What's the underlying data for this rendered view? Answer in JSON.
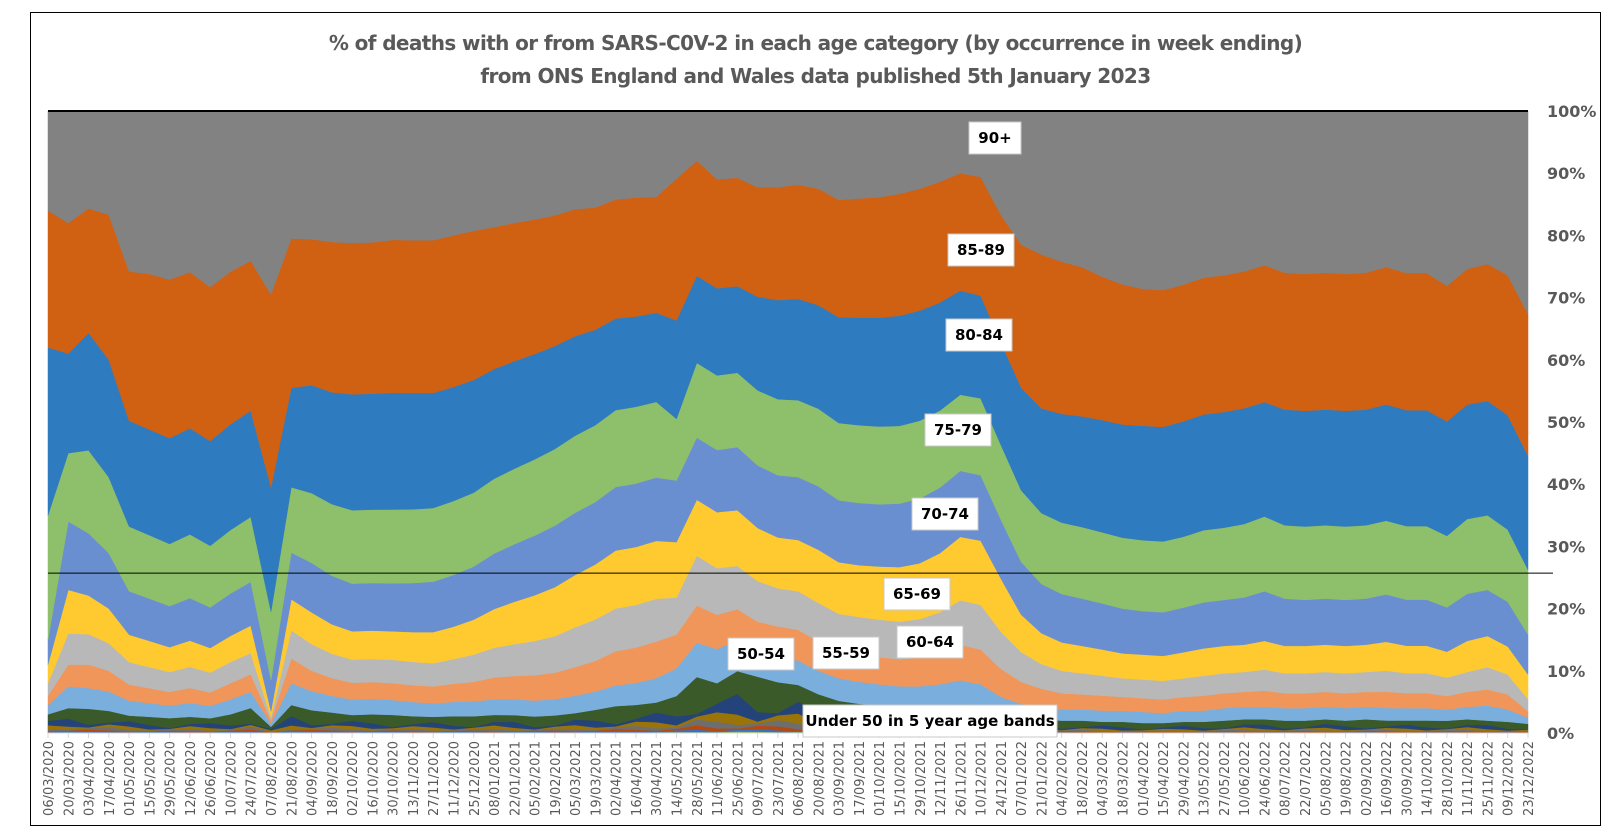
{
  "chart_data": {
    "type": "area",
    "stacked": "percent",
    "title": "% of deaths with or from SARS-C0V-2 in each age category (by occurrence in week ending)",
    "subtitle": "from ONS England and Wales data published 5th January 2023",
    "xlabel": "",
    "ylabel": "",
    "ylim": [
      0,
      100
    ],
    "y_ticks": [
      "0%",
      "10%",
      "20%",
      "30%",
      "40%",
      "50%",
      "60%",
      "70%",
      "80%",
      "90%",
      "100%"
    ],
    "y_axis_position": "right",
    "grid": false,
    "legend": "none (inline data labels)",
    "reference_line_pct": 25.7,
    "x": [
      "06/03/2020",
      "20/03/2020",
      "03/04/2020",
      "17/04/2020",
      "01/05/2020",
      "15/05/2020",
      "29/05/2020",
      "12/06/2020",
      "26/06/2020",
      "10/07/2020",
      "24/07/2020",
      "07/08/2020",
      "21/08/2020",
      "04/09/2020",
      "18/09/2020",
      "02/10/2020",
      "16/10/2020",
      "30/10/2020",
      "13/11/2020",
      "27/11/2020",
      "11/12/2020",
      "25/12/2020",
      "08/01/2021",
      "22/01/2021",
      "05/02/2021",
      "19/02/2021",
      "05/03/2021",
      "19/03/2021",
      "02/04/2021",
      "16/04/2021",
      "30/04/2021",
      "14/05/2021",
      "28/05/2021",
      "11/06/2021",
      "25/06/2021",
      "09/07/2021",
      "23/07/2021",
      "06/08/2021",
      "20/08/2021",
      "03/09/2021",
      "17/09/2021",
      "01/10/2021",
      "15/10/2021",
      "29/10/2021",
      "12/11/2021",
      "26/11/2021",
      "10/12/2021",
      "24/12/2021",
      "07/01/2022",
      "21/01/2022",
      "04/02/2022",
      "18/02/2022",
      "04/03/2022",
      "18/03/2022",
      "01/04/2022",
      "15/04/2022",
      "29/04/2022",
      "13/05/2022",
      "27/05/2022",
      "10/06/2022",
      "24/06/2022",
      "08/07/2022",
      "22/07/2022",
      "05/08/2022",
      "19/08/2022",
      "02/09/2022",
      "16/09/2022",
      "30/09/2022",
      "14/10/2022",
      "28/10/2022",
      "11/11/2022",
      "25/11/2022",
      "09/12/2022",
      "23/12/2022"
    ],
    "series": [
      {
        "name": "Under 50",
        "color": "#3a5a2a",
        "values": [
          3.0,
          4.0,
          3.5,
          3.2,
          2.8,
          2.6,
          2.4,
          2.6,
          2.4,
          3.0,
          4.0,
          1.0,
          4.5,
          3.6,
          3.2,
          2.8,
          2.9,
          2.8,
          2.6,
          2.5,
          2.6,
          2.6,
          2.8,
          2.8,
          2.6,
          2.8,
          3.2,
          3.8,
          4.4,
          4.6,
          5.0,
          6.0,
          9.0,
          8.0,
          10.0,
          9.0,
          8.0,
          7.5,
          6.0,
          5.0,
          4.5,
          4.3,
          4.0,
          4.0,
          4.2,
          4.5,
          4.0,
          3.0,
          2.5,
          2.2,
          2.0,
          2.0,
          1.8,
          1.8,
          1.6,
          1.6,
          1.8,
          1.8,
          2.0,
          2.2,
          2.2,
          2.0,
          2.0,
          2.2,
          2.0,
          2.2,
          2.0,
          2.0,
          2.0,
          2.0,
          2.2,
          2.0,
          1.8,
          1.5
        ]
      },
      {
        "name": "50-54",
        "color": "#7aaedd",
        "values": [
          1.5,
          3.5,
          3.0,
          2.8,
          2.4,
          2.2,
          2.0,
          2.2,
          2.0,
          2.4,
          2.6,
          0.5,
          3.5,
          3.0,
          2.6,
          2.4,
          2.4,
          2.3,
          2.2,
          2.1,
          2.2,
          2.3,
          2.4,
          2.5,
          2.5,
          2.6,
          2.8,
          3.0,
          3.4,
          3.6,
          4.0,
          4.5,
          5.5,
          5.5,
          5.0,
          4.0,
          4.0,
          3.8,
          3.6,
          3.5,
          3.4,
          3.2,
          3.2,
          3.2,
          3.4,
          3.8,
          3.6,
          2.8,
          2.2,
          2.0,
          1.8,
          1.8,
          1.8,
          1.8,
          1.8,
          1.6,
          1.8,
          1.8,
          2.0,
          2.0,
          2.0,
          2.0,
          2.0,
          2.0,
          2.0,
          2.0,
          2.0,
          2.0,
          2.0,
          1.8,
          2.0,
          2.4,
          2.0,
          1.0
        ]
      },
      {
        "name": "55-59",
        "color": "#f0965a",
        "values": [
          1.5,
          3.5,
          3.4,
          3.0,
          2.6,
          2.4,
          2.2,
          2.4,
          2.2,
          2.6,
          2.8,
          0.5,
          4.0,
          3.2,
          2.8,
          2.6,
          2.6,
          2.6,
          2.6,
          2.6,
          2.8,
          3.0,
          3.4,
          3.6,
          4.0,
          4.2,
          4.6,
          5.0,
          5.6,
          5.8,
          6.0,
          5.5,
          6.0,
          5.5,
          5.0,
          4.8,
          4.8,
          4.8,
          4.5,
          4.2,
          4.2,
          4.2,
          4.2,
          4.4,
          4.8,
          5.6,
          5.4,
          4.5,
          3.5,
          3.0,
          2.6,
          2.4,
          2.4,
          2.2,
          2.2,
          2.2,
          2.2,
          2.4,
          2.4,
          2.4,
          2.6,
          2.4,
          2.4,
          2.4,
          2.4,
          2.4,
          2.6,
          2.4,
          2.4,
          2.2,
          2.4,
          2.6,
          2.4,
          1.0
        ]
      },
      {
        "name": "60-64",
        "color": "#b8b8b8",
        "values": [
          2.0,
          5.0,
          4.4,
          4.0,
          3.6,
          3.4,
          3.2,
          3.4,
          3.2,
          3.4,
          3.4,
          0.5,
          4.5,
          4.2,
          3.8,
          3.6,
          3.6,
          3.6,
          3.6,
          3.6,
          3.8,
          4.2,
          4.6,
          5.0,
          5.4,
          5.8,
          6.4,
          6.8,
          7.0,
          7.0,
          7.0,
          6.0,
          8.0,
          7.5,
          7.0,
          6.5,
          6.0,
          6.0,
          6.0,
          5.8,
          5.8,
          5.8,
          5.8,
          6.0,
          6.4,
          7.0,
          7.0,
          6.0,
          4.8,
          4.0,
          3.6,
          3.4,
          3.2,
          3.0,
          3.0,
          3.0,
          3.0,
          3.2,
          3.2,
          3.2,
          3.4,
          3.2,
          3.2,
          3.2,
          3.2,
          3.2,
          3.4,
          3.2,
          3.2,
          3.0,
          3.2,
          3.6,
          3.2,
          2.0
        ]
      },
      {
        "name": "65-69",
        "color": "#ffca30",
        "values": [
          3.0,
          7.0,
          5.6,
          5.0,
          4.4,
          4.2,
          4.0,
          4.2,
          4.0,
          4.2,
          4.4,
          1.0,
          5.0,
          5.0,
          4.6,
          4.4,
          4.4,
          4.4,
          4.6,
          4.8,
          5.0,
          5.4,
          6.0,
          6.6,
          7.2,
          7.8,
          8.4,
          9.0,
          9.5,
          9.5,
          9.5,
          9.0,
          9.0,
          9.0,
          9.0,
          8.5,
          8.0,
          8.0,
          8.2,
          8.0,
          8.0,
          8.2,
          8.4,
          8.6,
          9.2,
          10.0,
          10.0,
          8.5,
          6.0,
          5.0,
          4.6,
          4.4,
          4.2,
          4.0,
          4.0,
          4.0,
          4.2,
          4.4,
          4.4,
          4.4,
          4.6,
          4.4,
          4.4,
          4.4,
          4.4,
          4.4,
          4.6,
          4.4,
          4.4,
          4.2,
          5.0,
          5.0,
          4.5,
          4.0
        ]
      },
      {
        "name": "70-74",
        "color": "#6a8fd0",
        "values": [
          4.0,
          11.0,
          9.0,
          8.0,
          7.0,
          6.8,
          6.6,
          6.8,
          6.6,
          6.8,
          7.0,
          5.0,
          7.5,
          7.8,
          7.6,
          7.4,
          7.4,
          7.4,
          7.6,
          7.8,
          8.0,
          8.2,
          8.6,
          9.0,
          9.4,
          9.8,
          10.0,
          10.2,
          10.4,
          10.4,
          10.4,
          10.0,
          10.0,
          10.0,
          10.2,
          10.0,
          9.8,
          9.8,
          9.8,
          9.6,
          9.6,
          9.6,
          9.8,
          10.0,
          10.2,
          10.4,
          10.2,
          9.5,
          8.5,
          8.0,
          7.8,
          7.6,
          7.4,
          7.2,
          7.0,
          7.0,
          7.2,
          7.4,
          7.4,
          7.6,
          8.0,
          7.6,
          7.4,
          7.4,
          7.4,
          7.4,
          7.6,
          7.4,
          7.4,
          7.2,
          7.6,
          7.4,
          7.2,
          6.5
        ]
      },
      {
        "name": "75-79",
        "color": "#8ebf6a",
        "values": [
          20.0,
          11.0,
          12.0,
          11.0,
          10.4,
          10.2,
          10.0,
          10.2,
          10.0,
          10.2,
          10.4,
          11.0,
          10.5,
          11.0,
          11.2,
          11.4,
          11.4,
          11.4,
          11.4,
          11.4,
          11.4,
          11.4,
          11.6,
          11.8,
          12.0,
          12.2,
          12.4,
          12.6,
          12.6,
          12.6,
          12.4,
          10.0,
          12.0,
          12.0,
          12.0,
          12.0,
          12.0,
          12.0,
          12.0,
          12.0,
          12.0,
          12.0,
          12.0,
          12.0,
          12.0,
          12.0,
          12.0,
          12.0,
          11.5,
          11.5,
          11.5,
          11.5,
          11.4,
          11.4,
          11.4,
          11.4,
          11.4,
          11.6,
          11.6,
          11.8,
          12.0,
          11.8,
          11.8,
          11.8,
          11.8,
          11.8,
          11.8,
          11.8,
          11.8,
          11.6,
          12.0,
          12.0,
          11.6,
          10.5
        ]
      },
      {
        "name": "80-84",
        "color": "#2f7bbf",
        "values": [
          27.0,
          16.0,
          17.0,
          17.0,
          17.0,
          17.0,
          17.0,
          17.0,
          17.0,
          17.0,
          17.0,
          20.0,
          16.0,
          17.0,
          17.5,
          18.0,
          18.0,
          18.0,
          18.0,
          17.8,
          17.6,
          17.4,
          17.0,
          16.8,
          16.6,
          16.4,
          16.0,
          15.6,
          15.0,
          14.8,
          14.6,
          16.0,
          14.0,
          14.0,
          14.0,
          15.0,
          15.6,
          15.8,
          16.0,
          16.4,
          16.6,
          16.8,
          17.0,
          17.0,
          16.8,
          16.4,
          16.0,
          16.5,
          16.5,
          17.0,
          17.5,
          17.8,
          18.0,
          18.2,
          18.4,
          18.4,
          18.6,
          18.6,
          18.6,
          18.6,
          18.4,
          18.6,
          18.6,
          18.6,
          18.6,
          18.6,
          18.6,
          18.6,
          18.6,
          18.6,
          18.4,
          18.4,
          18.4,
          18.5
        ]
      },
      {
        "name": "85-89",
        "color": "#d06012",
        "values": [
          22.0,
          21.0,
          18.0,
          21.0,
          24.0,
          25.0,
          25.5,
          25.0,
          25.0,
          24.5,
          24.0,
          31.0,
          24.0,
          23.0,
          23.5,
          23.5,
          23.5,
          23.6,
          23.6,
          23.6,
          23.4,
          23.0,
          22.0,
          21.6,
          21.2,
          20.8,
          20.4,
          20.0,
          19.5,
          19.5,
          19.0,
          23.0,
          18.5,
          17.5,
          17.5,
          17.5,
          17.8,
          17.8,
          18.0,
          18.2,
          18.4,
          18.6,
          18.8,
          18.8,
          18.8,
          18.5,
          18.5,
          20.5,
          23.0,
          25.0,
          24.5,
          24.0,
          23.0,
          22.5,
          22.0,
          22.0,
          22.0,
          22.0,
          22.0,
          22.0,
          22.0,
          22.0,
          22.0,
          22.0,
          22.0,
          22.0,
          22.0,
          22.0,
          22.0,
          22.0,
          21.8,
          22.0,
          22.5,
          23.0
        ]
      },
      {
        "name": "90+",
        "color": "#828282",
        "values": [
          16.0,
          18.0,
          14.1,
          15.0,
          25.8,
          26.2,
          27.1,
          25.8,
          28.6,
          25.8,
          24.0,
          29.5,
          20.5,
          20.2,
          20.5,
          20.5,
          20.4,
          19.9,
          20.0,
          20.0,
          19.2,
          18.5,
          18.0,
          17.5,
          17.1,
          16.6,
          15.8,
          15.8,
          14.5,
          14.2,
          14.1,
          11.0,
          8.0,
          11.0,
          10.8,
          12.2,
          12.0,
          11.5,
          12.0,
          13.8,
          13.5,
          13.3,
          12.8,
          12.0,
          11.0,
          9.8,
          10.3,
          16.7,
          21.5,
          23.3,
          24.3,
          25.1,
          26.6,
          27.9,
          28.6,
          28.8,
          28.0,
          26.8,
          26.4,
          25.8,
          24.8,
          26.0,
          26.2,
          26.0,
          26.2,
          26.0,
          25.0,
          26.0,
          26.0,
          28.4,
          25.4,
          24.6,
          26.4,
          33.0
        ]
      }
    ],
    "sub_under50_colors": [
      "#3a5a2a",
      "#23437a",
      "#9a7408",
      "#6e6e6e",
      "#b44a10",
      "#3b6fc4",
      "#7cb342"
    ],
    "annotations": [
      {
        "text": "90+",
        "series": "90+"
      },
      {
        "text": "85-89",
        "series": "85-89"
      },
      {
        "text": "80-84",
        "series": "80-84"
      },
      {
        "text": "75-79",
        "series": "75-79"
      },
      {
        "text": "70-74",
        "series": "70-74"
      },
      {
        "text": "65-69",
        "series": "65-69"
      },
      {
        "text": "60-64",
        "series": "60-64"
      },
      {
        "text": "55-59",
        "series": "55-59"
      },
      {
        "text": "50-54",
        "series": "50-54"
      },
      {
        "text": "Under 50 in 5 year age bands",
        "series": "Under 50"
      }
    ]
  }
}
